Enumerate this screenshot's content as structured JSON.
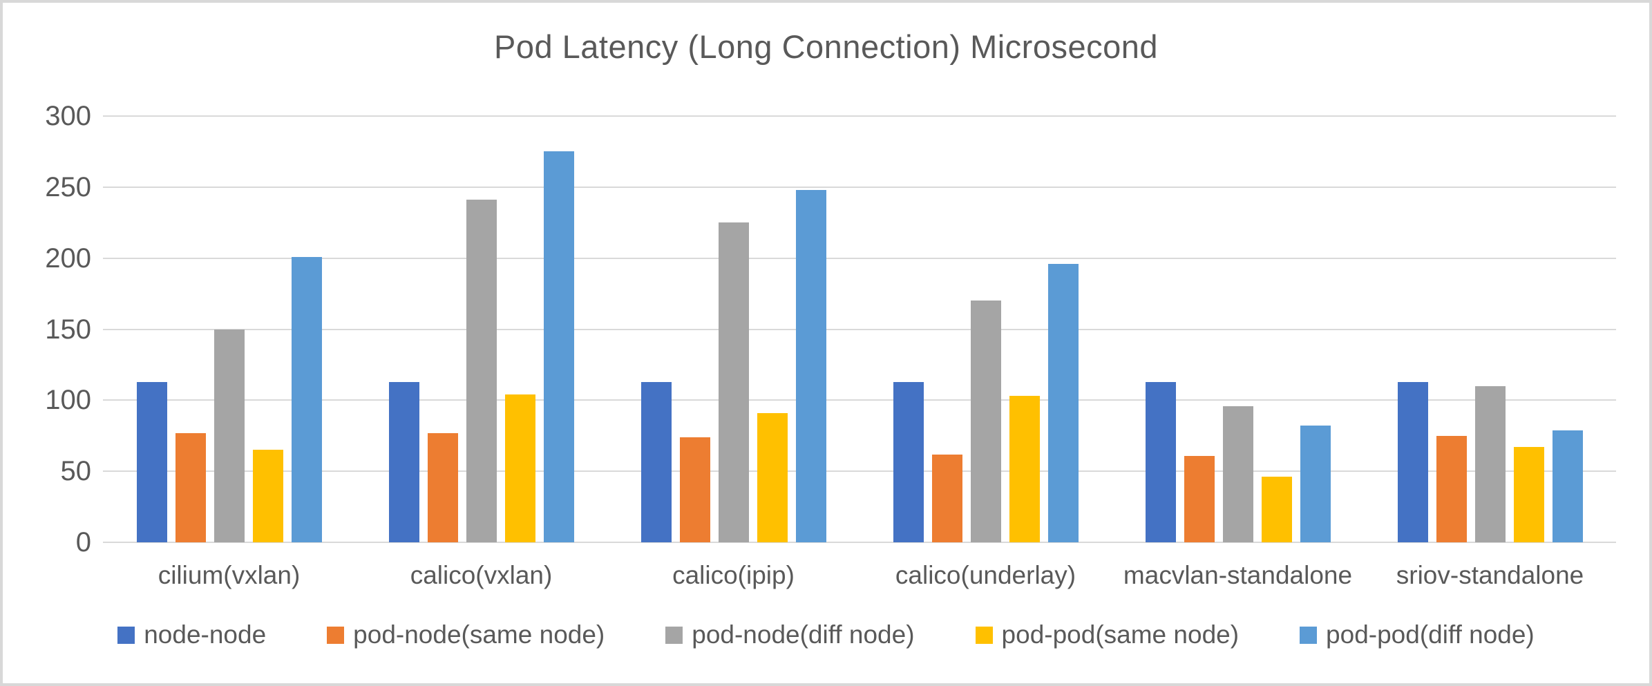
{
  "window": {
    "background_color": "#ffffff",
    "border_color": "#d8d8d8",
    "text_color": "#595959",
    "gridline_color": "#d9d9d9"
  },
  "chart_data": {
    "type": "bar",
    "title": "Pod Latency (Long Connection) Microsecond",
    "categories": [
      "cilium(vxlan)",
      "calico(vxlan)",
      "calico(ipip)",
      "calico(underlay)",
      "macvlan-standalone",
      "sriov-standalone"
    ],
    "series": [
      {
        "name": "node-node",
        "color": "#4472C4",
        "values": [
          113,
          113,
          113,
          113,
          113,
          113
        ]
      },
      {
        "name": "pod-node(same node)",
        "color": "#ED7D31",
        "values": [
          77,
          77,
          74,
          62,
          61,
          75
        ]
      },
      {
        "name": "pod-node(diff node)",
        "color": "#A5A5A5",
        "values": [
          150,
          241,
          225,
          170,
          96,
          110
        ]
      },
      {
        "name": "pod-pod(same node)",
        "color": "#FFC000",
        "values": [
          65,
          104,
          91,
          103,
          46,
          67
        ]
      },
      {
        "name": "pod-pod(diff node)",
        "color": "#5B9BD5",
        "values": [
          201,
          275,
          248,
          196,
          82,
          79
        ]
      }
    ],
    "ylim": [
      0,
      300
    ],
    "yticks": [
      300,
      250,
      200,
      150,
      100,
      50,
      0
    ],
    "ytick_interval": 50,
    "xlabel": "",
    "ylabel": "",
    "grid": true,
    "legend_position": "bottom"
  }
}
